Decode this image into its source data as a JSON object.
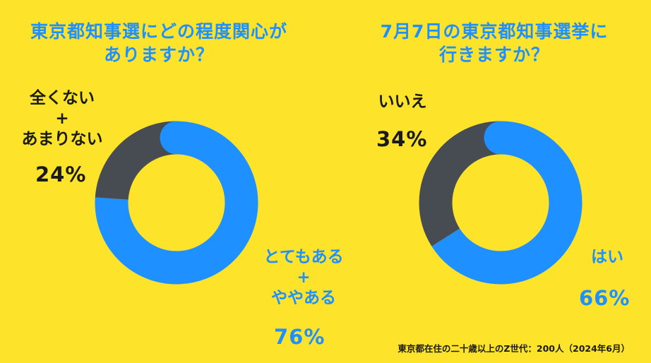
{
  "chart_data": [
    {
      "type": "pie",
      "title_lines": [
        "東京都知事選にどの程度関心が",
        "ありますか？"
      ],
      "slices": [
        {
          "label_lines": [
            "とてもある",
            "+",
            "ややある"
          ],
          "value": 76,
          "value_text": "76%",
          "color": "#1E90FF"
        },
        {
          "label_lines": [
            "全くない",
            "+",
            "あまりない"
          ],
          "value": 24,
          "value_text": "24%",
          "color": "#474C52"
        }
      ]
    },
    {
      "type": "pie",
      "title_lines": [
        "7月7日の東京都知事選挙に",
        "行きますか？"
      ],
      "slices": [
        {
          "label_lines": [
            "はい"
          ],
          "value": 66,
          "value_text": "66%",
          "color": "#1E90FF"
        },
        {
          "label_lines": [
            "いいえ"
          ],
          "value": 34,
          "value_text": "34%",
          "color": "#474C52"
        }
      ]
    }
  ],
  "footer": "東京都在住の二十歳以上のZ世代：200人（2024年6月）"
}
